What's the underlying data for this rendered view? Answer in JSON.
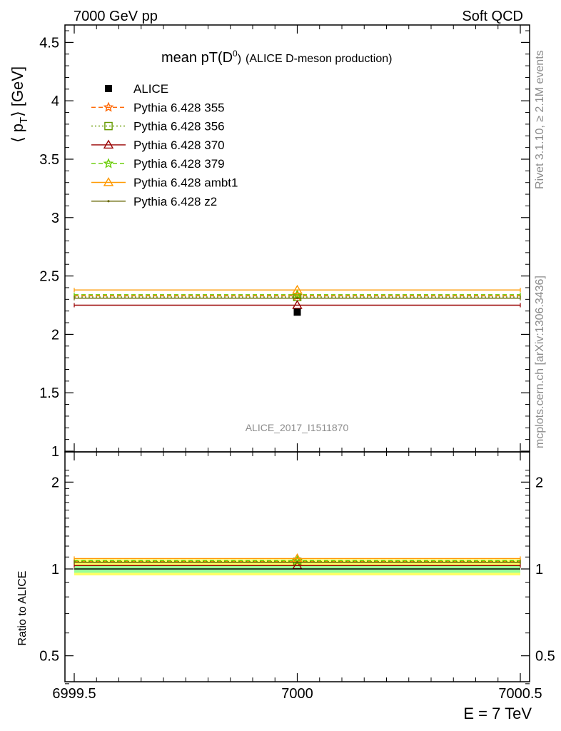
{
  "header": {
    "left": "7000 GeV pp",
    "right": "Soft QCD"
  },
  "side_labels": {
    "rivet": "Rivet 3.1.10, ≥ 2.1M events",
    "mcplots": "mcplots.cern.ch [arXiv:1306.3436]"
  },
  "chart_data": {
    "type": "line",
    "title": "mean pT(D⁰) (ALICE D-meson production)",
    "title_main": "mean pT(D",
    "title_sup": "0",
    "title_close": ")",
    "title_sub": "(ALICE D-meson production)",
    "analysis_id": "ALICE_2017_I1511870",
    "xlabel": "E = 7 TeV",
    "ylabel_main": "⟨ p",
    "ylabel_sub": "T",
    "ylabel_unit": "⟩ [GeV]",
    "ratio_ylabel": "Ratio to ALICE",
    "xlim": [
      6999.5,
      7000.5
    ],
    "ylim": [
      1,
      4.65
    ],
    "ratio_ylim": [
      0.35,
      2.25
    ],
    "x_ticks": [
      "6999.5",
      "7000",
      "7000.5"
    ],
    "y_ticks": [
      "1",
      "1.5",
      "2",
      "2.5",
      "3",
      "3.5",
      "4",
      "4.5"
    ],
    "ratio_y_ticks": [
      "0.5",
      "1",
      "2"
    ],
    "data": {
      "name": "ALICE",
      "x": 7000,
      "y": 2.19,
      "color": "#000000",
      "marker": "square"
    },
    "series": [
      {
        "name": "Pythia 6.428 355",
        "y": 2.33,
        "color": "#ff6600",
        "style": "dashed",
        "marker": "star"
      },
      {
        "name": "Pythia 6.428 356",
        "y": 2.32,
        "color": "#669900",
        "style": "dotted",
        "marker": "square-open"
      },
      {
        "name": "Pythia 6.428 370",
        "y": 2.25,
        "color": "#990000",
        "style": "solid",
        "marker": "triangle-open"
      },
      {
        "name": "Pythia 6.428 379",
        "y": 2.34,
        "color": "#66cc00",
        "style": "dashed",
        "marker": "star"
      },
      {
        "name": "Pythia 6.428 ambt1",
        "y": 2.38,
        "color": "#ff9900",
        "style": "solid",
        "marker": "triangle-open"
      },
      {
        "name": "Pythia 6.428 z2",
        "y": 2.31,
        "color": "#666600",
        "style": "solid",
        "marker": "dot"
      }
    ]
  }
}
